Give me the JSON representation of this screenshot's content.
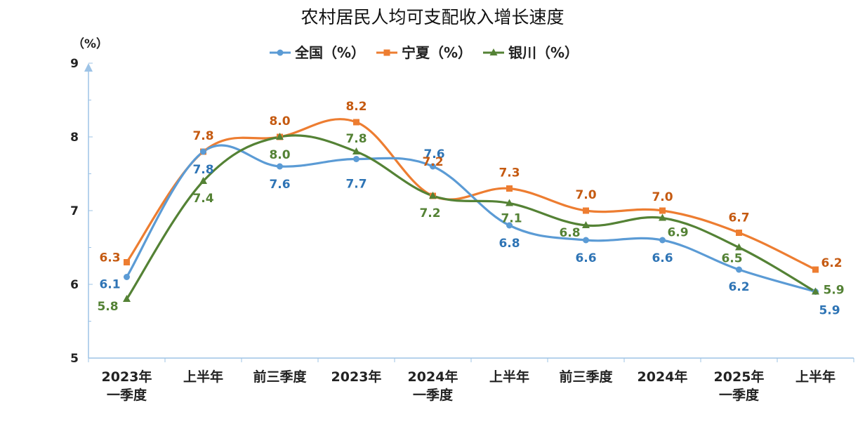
{
  "chart_data": {
    "type": "line",
    "title": "农村居民人均可支配收入增长速度",
    "unit_label": "（%）",
    "ylim": [
      5,
      9
    ],
    "yticks": [
      "5",
      "6",
      "7",
      "8",
      "9"
    ],
    "categories": [
      [
        "2023年",
        "一季度"
      ],
      [
        "上半年"
      ],
      [
        "前三季度"
      ],
      [
        "2023年"
      ],
      [
        "2024年",
        "一季度"
      ],
      [
        "上半年"
      ],
      [
        "前三季度"
      ],
      [
        "2024年"
      ],
      [
        "2025年",
        "一季度"
      ],
      [
        "上半年"
      ]
    ],
    "legend_position": "top-center",
    "smooth": true,
    "series": [
      {
        "name": "全国（%）",
        "color": "#5B9BD5",
        "label_color": "#2E74B5",
        "marker": "circle",
        "values": [
          6.1,
          7.8,
          7.6,
          7.7,
          7.6,
          6.8,
          6.6,
          6.6,
          6.2,
          5.9
        ],
        "labels": [
          "6.1",
          "7.8",
          "7.6",
          "7.7",
          "7.6",
          "6.8",
          "6.6",
          "6.6",
          "6.2",
          "5.9"
        ]
      },
      {
        "name": "宁夏（%）",
        "color": "#ED7D31",
        "label_color": "#C55A11",
        "marker": "square",
        "values": [
          6.3,
          7.8,
          8.0,
          8.2,
          7.2,
          7.3,
          7.0,
          7.0,
          6.7,
          6.2
        ],
        "labels": [
          "6.3",
          "7.8",
          "8.0",
          "8.2",
          "7.2",
          "7.3",
          "7.0",
          "7.0",
          "6.7",
          "6.2"
        ]
      },
      {
        "name": "银川（%）",
        "color": "#548235",
        "label_color": "#548235",
        "marker": "triangle",
        "values": [
          5.8,
          7.4,
          8.0,
          7.8,
          7.2,
          7.1,
          6.8,
          6.9,
          6.5,
          5.9
        ],
        "labels": [
          "5.8",
          "7.4",
          "8.0",
          "7.8",
          "7.2",
          "7.1",
          "6.8",
          "6.9",
          "6.5",
          "5.9"
        ]
      }
    ]
  }
}
